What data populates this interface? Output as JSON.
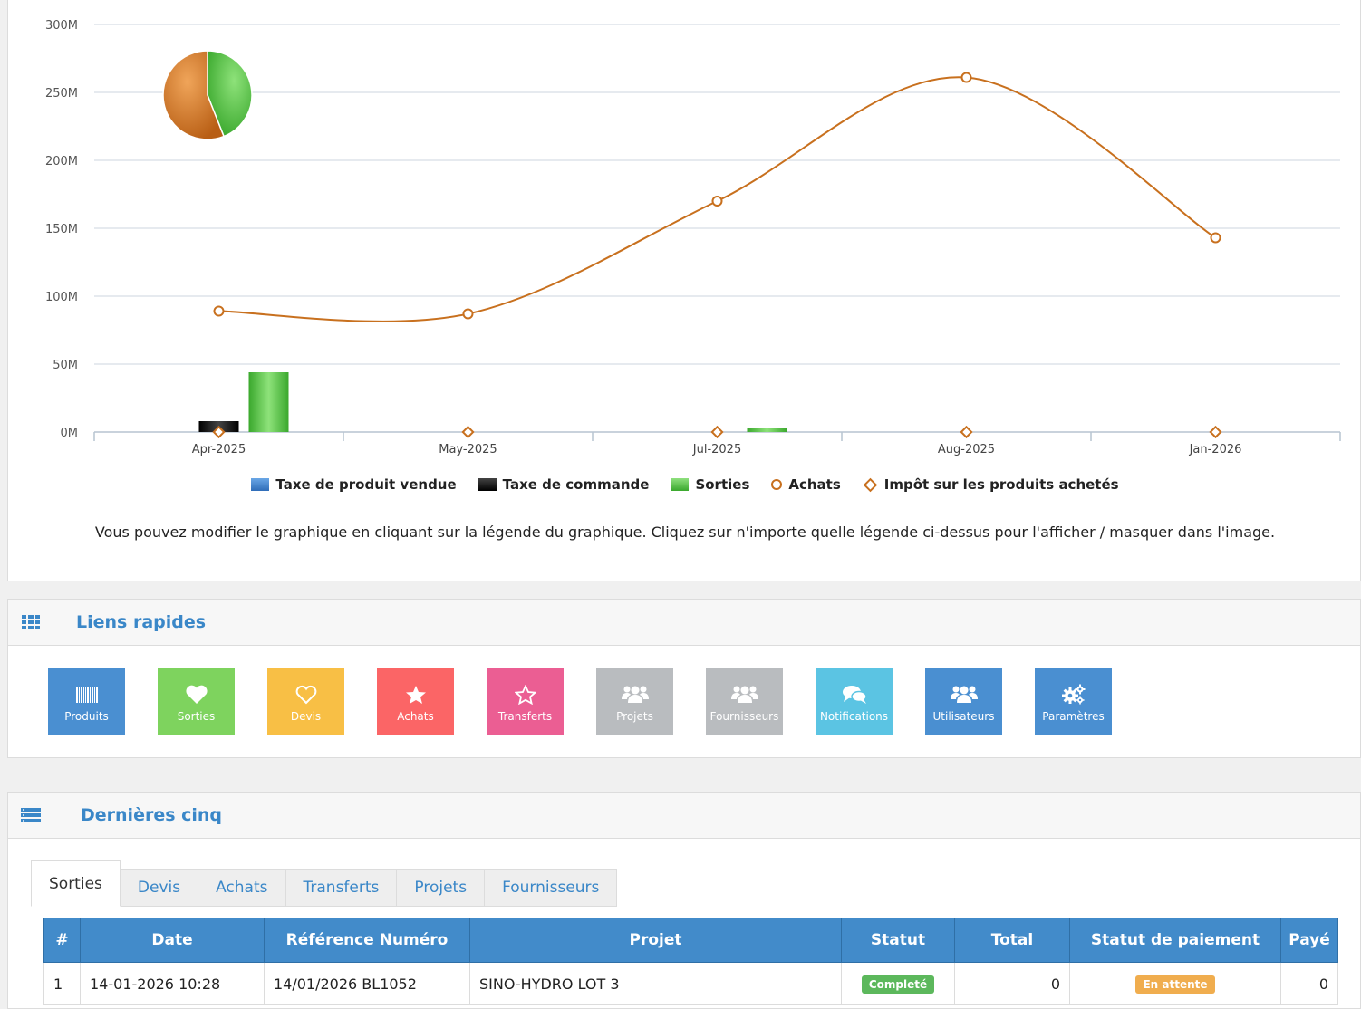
{
  "chart_data": {
    "type": "line",
    "categories": [
      "Apr-2025",
      "May-2025",
      "Jul-2025",
      "Aug-2025",
      "Jan-2026"
    ],
    "y_ticks": [
      "0M",
      "50M",
      "100M",
      "150M",
      "200M",
      "250M",
      "300M"
    ],
    "ylim": [
      0,
      300
    ],
    "grid": true,
    "legend_position": "bottom",
    "series": [
      {
        "name": "Taxe de produit vendue",
        "type": "bar",
        "color": "#3b7fc4",
        "values": [
          0,
          0,
          0,
          0,
          0
        ]
      },
      {
        "name": "Taxe de commande",
        "type": "bar",
        "color": "#111111",
        "values": [
          8,
          0,
          0,
          0,
          0
        ]
      },
      {
        "name": "Sorties",
        "type": "bar",
        "color": "#4cbb3c",
        "values": [
          44,
          0,
          3,
          0,
          0
        ]
      },
      {
        "name": "Achats",
        "type": "line",
        "color": "#c8701e",
        "values": [
          89,
          87,
          170,
          261,
          143
        ]
      },
      {
        "name": "Impôt sur les produits achetés",
        "type": "line",
        "color": "#c8701e",
        "values": [
          0,
          0,
          0,
          0,
          0
        ]
      }
    ],
    "pie": {
      "slices": [
        {
          "label": "Sorties",
          "value": 44,
          "color": "#4cbb3c"
        },
        {
          "label": "Achats",
          "value": 56,
          "color": "#d7822e"
        }
      ]
    }
  },
  "chart_note": "Vous pouvez modifier le graphique en cliquant sur la légende du graphique. Cliquez sur n'importe quelle légende ci-dessus pour l'afficher / masquer dans l'image.",
  "quick_links": {
    "title": "Liens rapides",
    "tiles": [
      {
        "label": "Produits",
        "icon": "barcode-icon",
        "color": "#4a8fd1"
      },
      {
        "label": "Sorties",
        "icon": "heart-icon",
        "color": "#7ed35e"
      },
      {
        "label": "Devis",
        "icon": "heart-outline-icon",
        "color": "#f8bf45"
      },
      {
        "label": "Achats",
        "icon": "star-icon",
        "color": "#fb6566"
      },
      {
        "label": "Transferts",
        "icon": "star-outline-icon",
        "color": "#eb5e93"
      },
      {
        "label": "Projets",
        "icon": "users-icon",
        "color": "#b9bcbf"
      },
      {
        "label": "Fournisseurs",
        "icon": "users-icon",
        "color": "#b9bcbf"
      },
      {
        "label": "Notifications",
        "icon": "comments-icon",
        "color": "#5bc4e3"
      },
      {
        "label": "Utilisateurs",
        "icon": "users-icon",
        "color": "#4a8fd1"
      },
      {
        "label": "Paramètres",
        "icon": "cogs-icon",
        "color": "#4a8fd1"
      }
    ]
  },
  "last_five": {
    "title": "Dernières cinq",
    "tabs": [
      "Sorties",
      "Devis",
      "Achats",
      "Transferts",
      "Projets",
      "Fournisseurs"
    ],
    "columns": [
      "#",
      "Date",
      "Référence Numéro",
      "Projet",
      "Statut",
      "Total",
      "Statut de paiement",
      "Payé"
    ],
    "rows": [
      {
        "num": "1",
        "date": "14-01-2026 10:28",
        "ref": "14/01/2026 BL1052",
        "project": "SINO-HYDRO LOT 3",
        "status": "Completé",
        "status_color": "#5cb85c",
        "total": "0",
        "payment_status": "En attente",
        "payment_color": "#f0ad4e",
        "paid": "0"
      }
    ]
  }
}
